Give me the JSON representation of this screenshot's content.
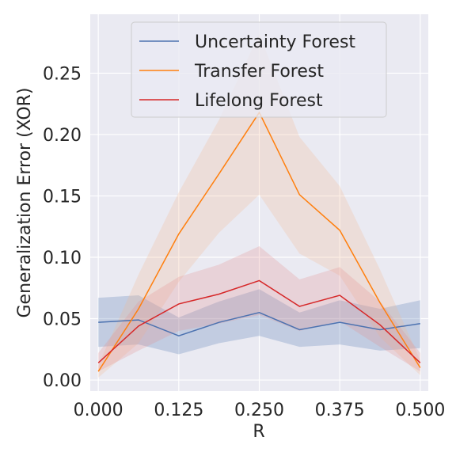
{
  "chart_data": {
    "type": "line",
    "title": "",
    "xlabel": "R",
    "ylabel": "Generalization Error (XOR)",
    "xlim": [
      -0.0125,
      0.5125
    ],
    "ylim": [
      -0.009,
      0.298
    ],
    "xticks": [
      0.0,
      0.125,
      0.25,
      0.375,
      0.5
    ],
    "xtick_labels": [
      "0.000",
      "0.125",
      "0.250",
      "0.375",
      "0.500"
    ],
    "yticks": [
      0.0,
      0.05,
      0.1,
      0.15,
      0.2,
      0.25
    ],
    "ytick_labels": [
      "0.00",
      "0.05",
      "0.10",
      "0.15",
      "0.20",
      "0.25"
    ],
    "grid": true,
    "legend_position": "top-center",
    "x": [
      0.0,
      0.0625,
      0.125,
      0.1875,
      0.25,
      0.3125,
      0.375,
      0.4375,
      0.5
    ],
    "series": [
      {
        "name": "Uncertainty Forest",
        "color": "#4c72b0",
        "band_color": "#4c72b0",
        "values": [
          0.047,
          0.049,
          0.036,
          0.047,
          0.055,
          0.041,
          0.047,
          0.041,
          0.046
        ],
        "lower": [
          0.027,
          0.029,
          0.021,
          0.03,
          0.036,
          0.027,
          0.029,
          0.024,
          0.026
        ],
        "upper": [
          0.067,
          0.069,
          0.051,
          0.064,
          0.074,
          0.055,
          0.065,
          0.058,
          0.065
        ]
      },
      {
        "name": "Transfer Forest",
        "color": "#ff7f0e",
        "band_color": "#f5b98f",
        "values": [
          0.007,
          0.058,
          0.119,
          0.168,
          0.218,
          0.151,
          0.122,
          0.063,
          0.01
        ],
        "lower": [
          0.002,
          0.03,
          0.08,
          0.12,
          0.151,
          0.103,
          0.085,
          0.035,
          0.004
        ],
        "upper": [
          0.012,
          0.086,
          0.153,
          0.212,
          0.282,
          0.198,
          0.158,
          0.09,
          0.016
        ]
      },
      {
        "name": "Lifelong Forest",
        "color": "#d62728",
        "band_color": "#e48a8a",
        "values": [
          0.014,
          0.044,
          0.062,
          0.07,
          0.081,
          0.06,
          0.069,
          0.045,
          0.014
        ],
        "lower": [
          0.007,
          0.024,
          0.04,
          0.046,
          0.053,
          0.04,
          0.048,
          0.027,
          0.007
        ],
        "upper": [
          0.022,
          0.064,
          0.084,
          0.094,
          0.109,
          0.082,
          0.092,
          0.064,
          0.022
        ]
      }
    ]
  }
}
